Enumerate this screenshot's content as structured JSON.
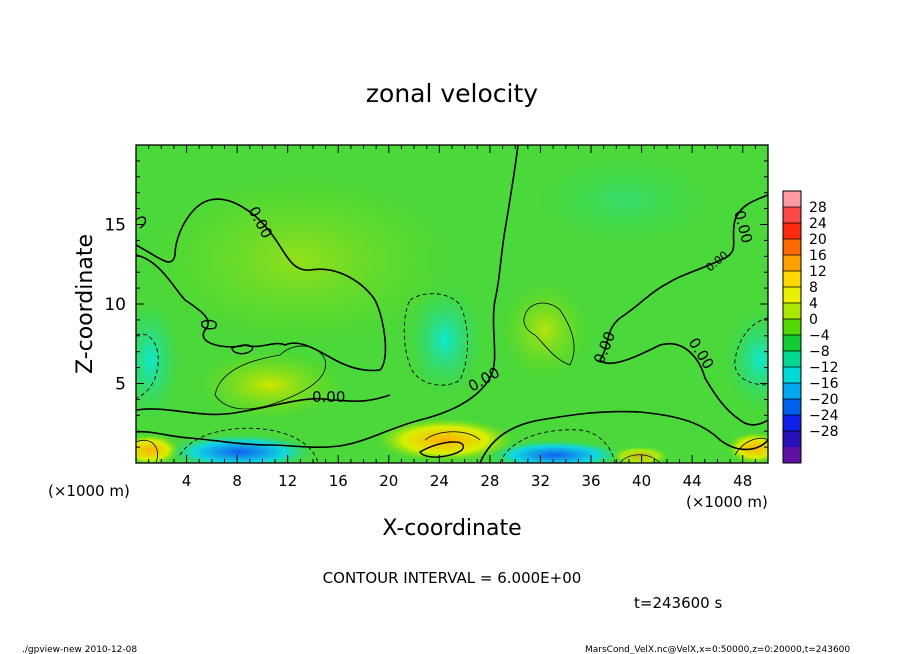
{
  "chart_data": {
    "type": "heatmap",
    "title": "zonal velocity",
    "xlabel": "X-coordinate",
    "ylabel": "Z-coordinate",
    "x_unit": "(×1000 m)",
    "x_ticks": [
      4,
      8,
      12,
      16,
      20,
      24,
      28,
      32,
      36,
      40,
      44,
      48
    ],
    "y_ticks": [
      5,
      10,
      15
    ],
    "xlim": [
      0,
      50
    ],
    "ylim": [
      0,
      20
    ],
    "contour_interval_text": "CONTOUR INTERVAL = 6.000E+00",
    "contour_labels": [
      "0.00",
      "0.00",
      "0.00",
      "0.00",
      "0.00",
      "0.00",
      "0.00"
    ],
    "time_text": "t=243600 s",
    "colorbar": {
      "ticks": [
        "28",
        "24",
        "20",
        "16",
        "12",
        "8",
        "4",
        "0",
        "-4",
        "-8",
        "-12",
        "-16",
        "-20",
        "-24",
        "-28"
      ],
      "colors": [
        "#ff9aa0",
        "#ff4848",
        "#ff2a10",
        "#ff6a00",
        "#ffa000",
        "#ffd800",
        "#e8f000",
        "#a8e800",
        "#50d800",
        "#10cc30",
        "#00d890",
        "#00d8d8",
        "#00a8f0",
        "#0060f0",
        "#1020e8",
        "#2810b8",
        "#6010a0"
      ]
    }
  },
  "footer": {
    "left": "./gpview-new 2010-12-08",
    "right": "MarsCond_VelX.nc@VelX,x=0:50000,z=0:20000,t=243600"
  }
}
